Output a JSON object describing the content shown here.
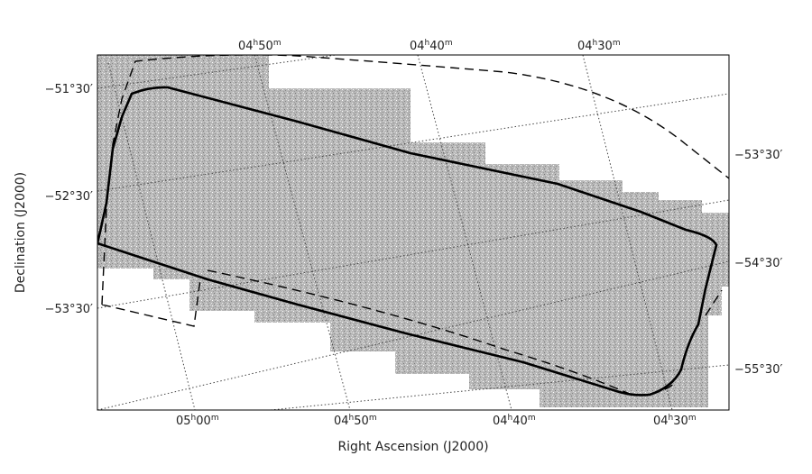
{
  "figure": {
    "x_axis_title": "Right Ascension (J2000)",
    "y_axis_title": "Declination (J2000)",
    "ra_ticks_top": [
      {
        "h": "04",
        "m": "50",
        "suffix_h": "h",
        "suffix_m": "m"
      },
      {
        "h": "04",
        "m": "40",
        "suffix_h": "h",
        "suffix_m": "m"
      },
      {
        "h": "04",
        "m": "30",
        "suffix_h": "h",
        "suffix_m": "m"
      }
    ],
    "ra_ticks_bottom": [
      {
        "h": "05",
        "m": "00",
        "suffix_h": "h",
        "suffix_m": "m"
      },
      {
        "h": "04",
        "m": "50",
        "suffix_h": "h",
        "suffix_m": "m"
      },
      {
        "h": "04",
        "m": "40",
        "suffix_h": "h",
        "suffix_m": "m"
      },
      {
        "h": "04",
        "m": "30",
        "suffix_h": "h",
        "suffix_m": "m"
      }
    ],
    "dec_ticks_left": [
      "−51°30′",
      "−52°30′",
      "−53°30′"
    ],
    "dec_ticks_right": [
      "−53°30′",
      "−54°30′",
      "−55°30′"
    ],
    "colors": {
      "mosaic_fill": "#b8b8b8",
      "outline": "#000000",
      "grid": "#444444"
    },
    "legend": "none"
  }
}
